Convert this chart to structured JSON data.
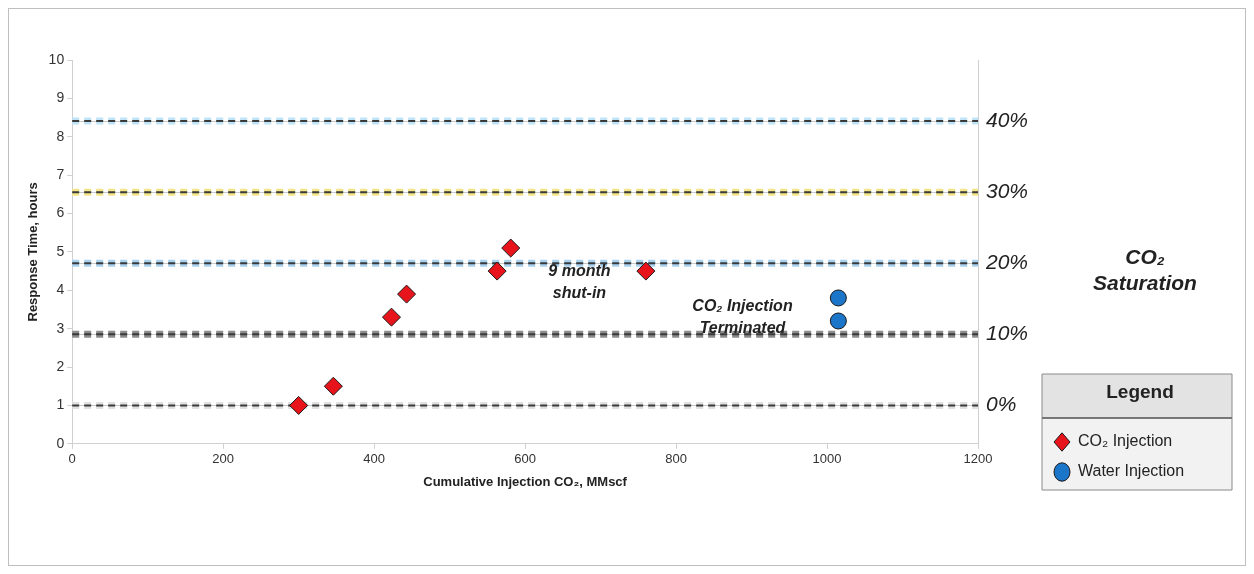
{
  "chart_data": {
    "type": "scatter",
    "xlabel": "Cumulative Injection CO₂, MMscf",
    "ylabel": "Response Time, hours",
    "y2label": "CO₂ Saturation",
    "legend_title": "Legend",
    "legend": "bottom right",
    "grid": "y2",
    "xlim": [
      0,
      1200
    ],
    "xticks": [
      0,
      200,
      400,
      600,
      800,
      1000,
      1200
    ],
    "ylim": [
      0,
      10
    ],
    "yticks": [
      0,
      1,
      2,
      3,
      4,
      5,
      6,
      7,
      8,
      9,
      10
    ],
    "y2lim": [
      -5.4,
      48.6
    ],
    "y2ticks": [
      {
        "value": 0,
        "label": "0%"
      },
      {
        "value": 10,
        "label": "10%"
      },
      {
        "value": 20,
        "label": "20%"
      },
      {
        "value": 30,
        "label": "30%"
      },
      {
        "value": 40,
        "label": "40%"
      }
    ],
    "series": [
      {
        "name": "CO₂ Injection",
        "color": "#e8141b",
        "marker": "diamond",
        "x": [
          300,
          346,
          423,
          443,
          563,
          581,
          760
        ],
        "values": [
          1.0,
          1.5,
          3.3,
          3.9,
          4.5,
          5.1,
          4.5
        ]
      },
      {
        "name": "Water Injection",
        "color": "#1b75c9",
        "marker": "circle",
        "x": [
          1015,
          1015
        ],
        "values": [
          3.8,
          3.2
        ]
      }
    ],
    "ref_lines": [
      {
        "axis": "y2",
        "value": 40,
        "color": "#bfe3f7",
        "line_style": "dashed"
      },
      {
        "axis": "y2",
        "value": 30,
        "color": "#f3e58a",
        "line_style": "dashed"
      },
      {
        "axis": "y2",
        "value": 20,
        "color": "#a9d2f0",
        "line_style": "dashed"
      },
      {
        "axis": "y2",
        "value": 10,
        "color": "#8c8c8c",
        "line_style": "dashed"
      },
      {
        "axis": "y2",
        "value": 0,
        "color": "#e0e0e0",
        "line_style": "dashed"
      }
    ],
    "annotations": [
      "9 month shut-in",
      "CO₂ Injection Terminated"
    ]
  }
}
